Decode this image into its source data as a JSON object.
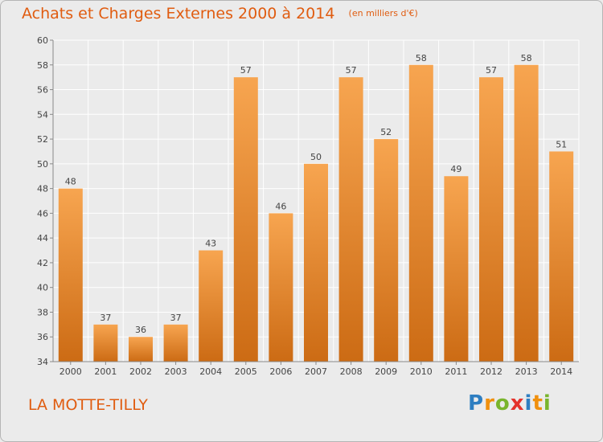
{
  "title": "Achats et Charges Externes 2000 à 2014",
  "subtitle": "(en milliers d'€)",
  "commune": "LA MOTTE-TILLY",
  "logo": {
    "letters": [
      "P",
      "r",
      "o",
      "x",
      "i",
      "t",
      "i"
    ],
    "colors": [
      "#2e7ec1",
      "#f0900d",
      "#79b52d",
      "#e4322b",
      "#2e7ec1",
      "#f0900d",
      "#79b52d"
    ]
  },
  "colors": {
    "bar_top": "#f7a550",
    "bar_bottom": "#cc6b14",
    "text": "#444444",
    "accent": "#e05c10"
  },
  "chart_data": {
    "type": "bar",
    "categories": [
      "2000",
      "2001",
      "2002",
      "2003",
      "2004",
      "2005",
      "2006",
      "2007",
      "2008",
      "2009",
      "2010",
      "2011",
      "2012",
      "2013",
      "2014"
    ],
    "values": [
      48,
      37,
      36,
      37,
      43,
      57,
      46,
      50,
      57,
      52,
      58,
      49,
      57,
      58,
      51
    ],
    "ylim": [
      34,
      60
    ],
    "yticks": [
      34,
      36,
      38,
      40,
      42,
      44,
      46,
      48,
      50,
      52,
      54,
      56,
      58,
      60
    ],
    "grid": true,
    "data_labels": true
  }
}
